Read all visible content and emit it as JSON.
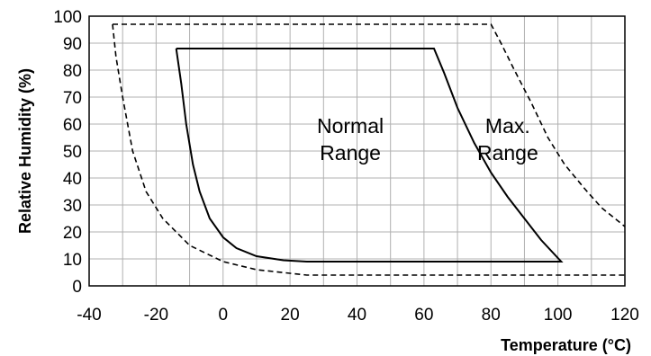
{
  "chart_data": {
    "type": "line",
    "title": "",
    "xlabel": "Temperature (°C)",
    "ylabel": "Relative Humidity (%)",
    "xlim": [
      -40,
      120
    ],
    "ylim": [
      0,
      100
    ],
    "x_ticks": [
      -40,
      -20,
      0,
      20,
      40,
      60,
      80,
      100,
      120
    ],
    "y_ticks": [
      0,
      10,
      20,
      30,
      40,
      50,
      60,
      70,
      80,
      90,
      100
    ],
    "grid": true,
    "series": [
      {
        "style": "solid",
        "points": [
          [
            -14,
            88
          ],
          [
            63,
            88
          ],
          [
            66,
            79
          ],
          [
            70,
            66
          ],
          [
            75,
            53
          ],
          [
            80,
            42
          ],
          [
            85,
            33
          ],
          [
            90,
            25
          ],
          [
            95,
            17
          ],
          [
            101,
            9
          ],
          [
            25,
            9
          ],
          [
            18,
            9.5
          ],
          [
            10,
            11
          ],
          [
            4,
            14
          ],
          [
            0,
            18
          ],
          [
            -4,
            25
          ],
          [
            -7,
            35
          ],
          [
            -9,
            45
          ],
          [
            -11,
            60
          ],
          [
            -12.5,
            75
          ],
          [
            -14,
            88
          ]
        ]
      },
      {
        "style": "dashed",
        "points": [
          [
            -33,
            97
          ],
          [
            -32,
            85
          ],
          [
            -30,
            70
          ],
          [
            -27,
            50
          ],
          [
            -23,
            35
          ],
          [
            -18,
            25
          ],
          [
            -10,
            15
          ],
          [
            0,
            9
          ],
          [
            10,
            6
          ],
          [
            25,
            4
          ],
          [
            40,
            4
          ],
          [
            120,
            4
          ]
        ]
      },
      {
        "style": "dashed",
        "points": [
          [
            -33,
            97
          ],
          [
            80,
            97
          ],
          [
            83,
            90
          ],
          [
            87,
            80
          ],
          [
            92,
            68
          ],
          [
            97,
            55
          ],
          [
            102,
            45
          ],
          [
            108,
            36
          ],
          [
            113,
            29
          ],
          [
            120,
            22
          ]
        ]
      }
    ],
    "annotations": [
      {
        "lines": [
          "Normal",
          "Range"
        ],
        "x": 38,
        "y": 48
      },
      {
        "lines": [
          "Max.",
          "Range"
        ],
        "x": 85,
        "y": 48
      }
    ]
  }
}
